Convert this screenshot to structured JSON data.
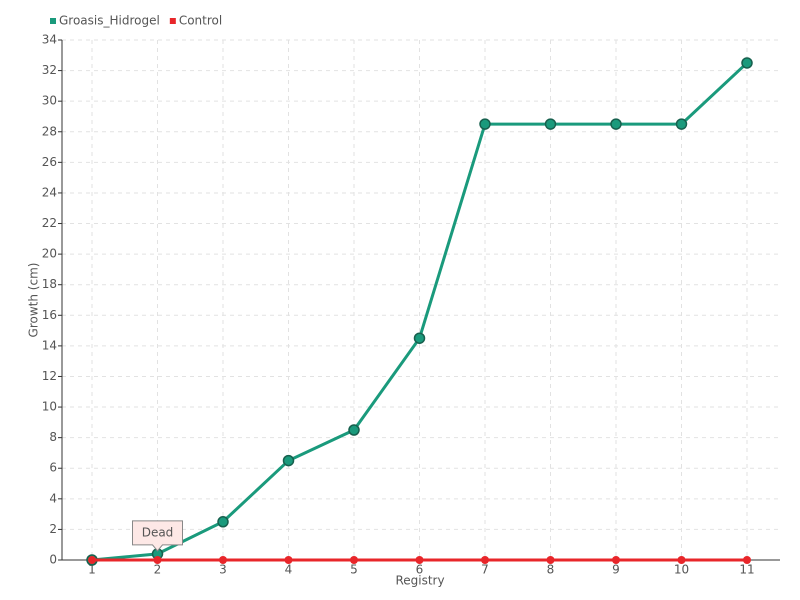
{
  "chart_data": {
    "type": "line",
    "categories": [
      "1",
      "2",
      "3",
      "4",
      "5",
      "6",
      "7",
      "8",
      "9",
      "10",
      "11"
    ],
    "series": [
      {
        "name": "Groasis_Hidrogel",
        "color": "#1a9a7c",
        "values": [
          0,
          0.4,
          2.5,
          6.5,
          8.5,
          14.5,
          28.5,
          28.5,
          28.5,
          28.5,
          32.5
        ]
      },
      {
        "name": "Control",
        "color": "#e8262a",
        "values": [
          0,
          0,
          0,
          0,
          0,
          0,
          0,
          0,
          0,
          0,
          0
        ]
      }
    ],
    "x_label": "Registry",
    "y_label": "Growth (cm)",
    "ylim": [
      0,
      34
    ],
    "yticks": [
      0,
      2,
      4,
      6,
      8,
      10,
      12,
      14,
      16,
      18,
      20,
      22,
      24,
      26,
      28,
      30,
      32,
      34
    ],
    "grid": true,
    "legend": "top-left",
    "annotation": {
      "text": "Dead",
      "category": 1
    }
  }
}
